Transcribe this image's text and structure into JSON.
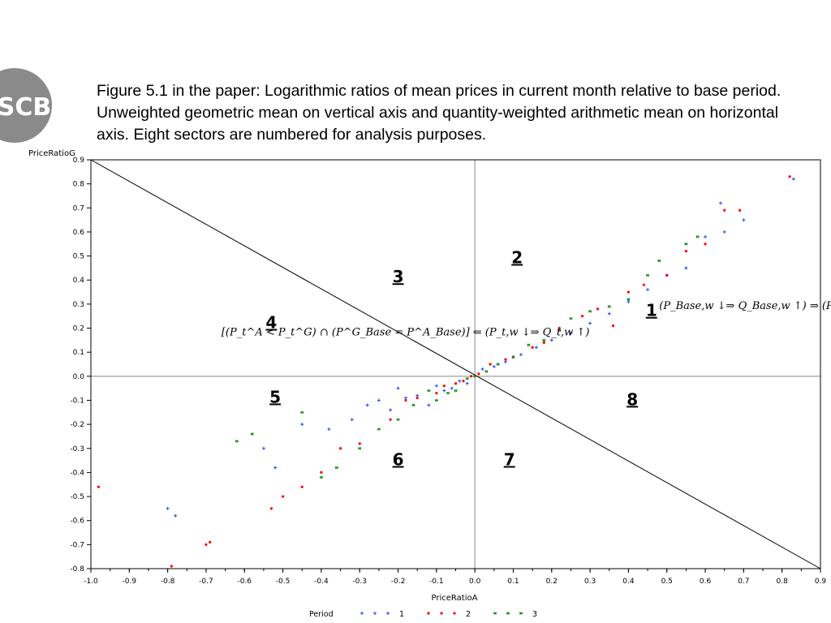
{
  "logo": {
    "text": "SCB"
  },
  "caption": "Figure 5.1 in the paper: Logarithmic ratios of mean prices in current month relative to base period. Unweighted geometric mean on vertical axis and quantity-weighted arithmetic mean on horizontal axis. Eight sectors are numbered for analysis purposes.",
  "colors": {
    "period_1": "#1f3fff",
    "period_2": "#ff0000",
    "period_3": "#1a8a1a",
    "reference": "#000000",
    "axis_zero": "#888888"
  },
  "chart_data": {
    "type": "scatter",
    "xlabel": "PriceRatioA",
    "ylabel": "PriceRatioG",
    "xlim": [
      -1.0,
      0.9
    ],
    "ylim": [
      -0.8,
      0.9
    ],
    "x_ticks": [
      "-1.0",
      "-0.9",
      "-0.8",
      "-0.7",
      "-0.6",
      "-0.5",
      "-0.4",
      "-0.3",
      "-0.2",
      "-0.1",
      "0.0",
      "0.1",
      "0.2",
      "0.3",
      "0.4",
      "0.5",
      "0.6",
      "0.7",
      "0.8",
      "0.9"
    ],
    "y_ticks": [
      "0.9",
      "0.8",
      "0.7",
      "0.6",
      "0.5",
      "0.4",
      "0.3",
      "0.2",
      "0.1",
      "0.0",
      "-0.1",
      "-0.2",
      "-0.3",
      "-0.4",
      "-0.5",
      "-0.6",
      "-0.7",
      "-0.8"
    ],
    "grid": false,
    "reference_lines": [
      {
        "type": "vertical",
        "x": 0.0
      },
      {
        "type": "horizontal",
        "y": 0.0
      },
      {
        "type": "line",
        "from": [
          -1.0,
          0.9
        ],
        "to": [
          0.9,
          -0.8
        ]
      }
    ],
    "sectors": [
      {
        "label": "1",
        "x": 0.46,
        "y": 0.25
      },
      {
        "label": "2",
        "x": 0.11,
        "y": 0.47
      },
      {
        "label": "3",
        "x": -0.2,
        "y": 0.39
      },
      {
        "label": "4",
        "x": -0.53,
        "y": 0.2
      },
      {
        "label": "5",
        "x": -0.52,
        "y": -0.11
      },
      {
        "label": "6",
        "x": -0.2,
        "y": -0.37
      },
      {
        "label": "7",
        "x": 0.09,
        "y": -0.37
      },
      {
        "label": "8",
        "x": 0.41,
        "y": -0.12
      }
    ],
    "annotations": [
      {
        "text": "(P_Base,w ↓⇒ Q_Base,w ↑) ⇒ (P^G_Base > P^A_Base)",
        "x": 0.48,
        "y": 0.28
      },
      {
        "text": "[(P_t^A < P_t^G) ∩ (P^G_Base = P^A_Base)] ⇐ (P_t,w ↓⇒ Q_t,w ↑)",
        "x": -0.66,
        "y": 0.17
      }
    ],
    "legend": {
      "title": "Period",
      "position": "bottom",
      "entries": [
        "1",
        "2",
        "3"
      ]
    },
    "series": [
      {
        "name": "1",
        "marker": "plus",
        "x": [
          -0.8,
          -0.78,
          -0.55,
          -0.52,
          -0.45,
          -0.38,
          -0.32,
          -0.28,
          -0.25,
          -0.22,
          -0.2,
          -0.18,
          -0.15,
          -0.12,
          -0.1,
          -0.08,
          -0.06,
          -0.04,
          -0.02,
          0.02,
          0.05,
          0.08,
          0.12,
          0.16,
          0.2,
          0.25,
          0.3,
          0.35,
          0.4,
          0.45,
          0.5,
          0.55,
          0.6,
          0.64,
          0.65,
          0.7,
          0.83
        ],
        "y": [
          -0.55,
          -0.58,
          -0.3,
          -0.38,
          -0.2,
          -0.22,
          -0.18,
          -0.12,
          -0.1,
          -0.14,
          -0.05,
          -0.09,
          -0.08,
          -0.12,
          -0.04,
          -0.06,
          -0.05,
          -0.02,
          -0.03,
          0.03,
          0.04,
          0.06,
          0.09,
          0.12,
          0.15,
          0.18,
          0.22,
          0.26,
          0.31,
          0.36,
          0.42,
          0.45,
          0.58,
          0.72,
          0.6,
          0.65,
          0.82
        ]
      },
      {
        "name": "2",
        "marker": "dot",
        "x": [
          -0.98,
          -0.79,
          -0.69,
          -0.7,
          -0.53,
          -0.5,
          -0.45,
          -0.4,
          -0.35,
          -0.3,
          -0.22,
          -0.18,
          -0.15,
          -0.1,
          -0.08,
          -0.05,
          -0.03,
          -0.01,
          0.01,
          0.04,
          0.08,
          0.1,
          0.15,
          0.18,
          0.22,
          0.28,
          0.32,
          0.36,
          0.4,
          0.44,
          0.5,
          0.55,
          0.6,
          0.65,
          0.69,
          0.82
        ],
        "y": [
          -0.46,
          -0.79,
          -0.69,
          -0.7,
          -0.55,
          -0.5,
          -0.46,
          -0.4,
          -0.3,
          -0.28,
          -0.18,
          -0.1,
          -0.09,
          -0.07,
          -0.04,
          -0.03,
          -0.02,
          0.0,
          0.01,
          0.05,
          0.07,
          0.08,
          0.12,
          0.14,
          0.2,
          0.25,
          0.28,
          0.21,
          0.35,
          0.38,
          0.42,
          0.52,
          0.55,
          0.69,
          0.69,
          0.83
        ]
      },
      {
        "name": "3",
        "marker": "star",
        "x": [
          -0.62,
          -0.58,
          -0.45,
          -0.4,
          -0.36,
          -0.3,
          -0.25,
          -0.2,
          -0.16,
          -0.12,
          -0.1,
          -0.07,
          -0.05,
          -0.02,
          0.0,
          0.03,
          0.06,
          0.1,
          0.14,
          0.18,
          0.22,
          0.25,
          0.3,
          0.35,
          0.4,
          0.45,
          0.48,
          0.55,
          0.58
        ],
        "y": [
          -0.27,
          -0.24,
          -0.15,
          -0.42,
          -0.38,
          -0.3,
          -0.22,
          -0.18,
          -0.12,
          -0.06,
          -0.1,
          -0.07,
          -0.06,
          -0.01,
          0.0,
          0.02,
          0.05,
          0.08,
          0.13,
          0.15,
          0.19,
          0.24,
          0.27,
          0.29,
          0.32,
          0.42,
          0.48,
          0.55,
          0.58
        ]
      }
    ]
  }
}
